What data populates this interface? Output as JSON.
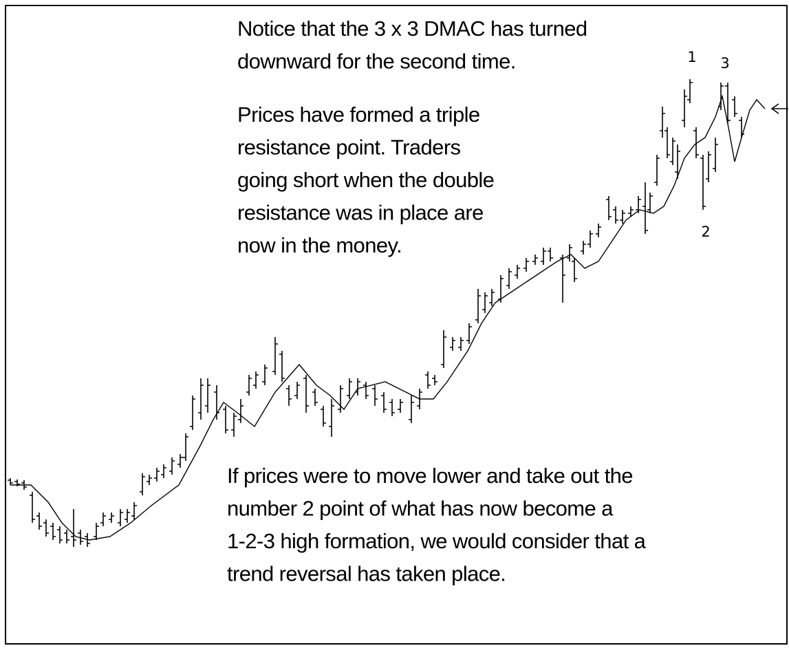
{
  "annotations": [
    {
      "lines": [
        "Notice that the 3 x 3 DMAC has turned",
        "downward for the second time."
      ]
    },
    {
      "lines": [
        "Prices have formed a triple",
        "resistance point.  Traders",
        "going short when the double",
        "resistance was in place are",
        "now in the money."
      ]
    },
    {
      "lines": [
        "If prices were to move lower and take out the",
        "number 2 point of what has now become a",
        "1-2-3 high formation, we would consider that a",
        "trend reversal has taken place."
      ]
    }
  ],
  "point_labels": [
    "1",
    "2",
    "3"
  ]
}
